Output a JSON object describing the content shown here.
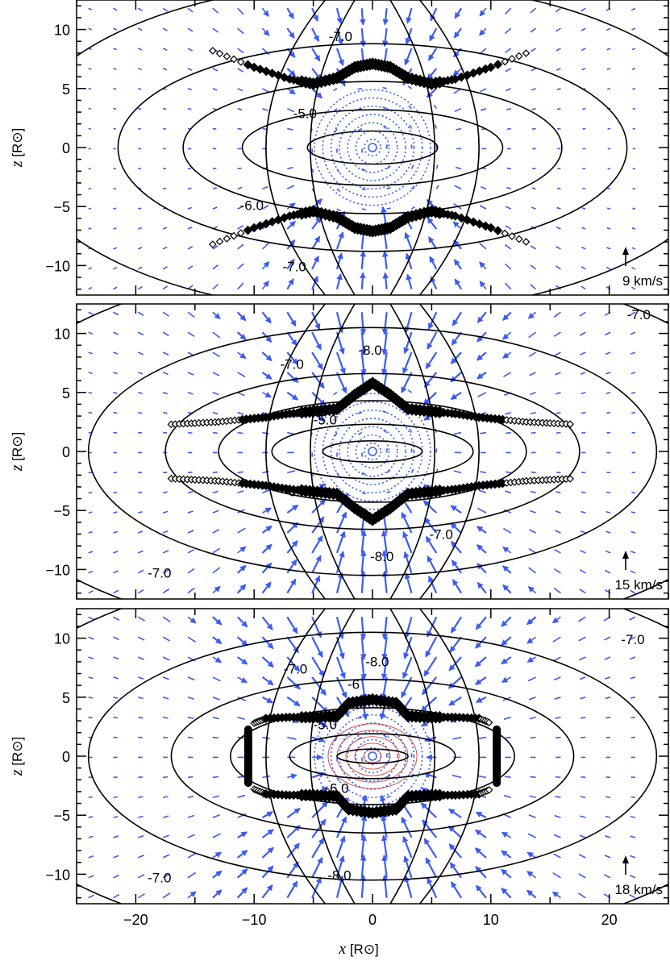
{
  "chart_data": [
    {
      "type": "contour+vector",
      "panel": "top",
      "ylabel": "z [R⊙]",
      "xlim": [
        -25,
        25
      ],
      "ylim": [
        -12.5,
        12.5
      ],
      "xticks": [
        -20,
        -10,
        0,
        10,
        20
      ],
      "yticks": [
        -10,
        -5,
        0,
        5,
        10
      ],
      "contour_labels": [
        "-5.0",
        "-6.0",
        "-7.0",
        "-7.0"
      ],
      "reference_arrow_label": "9 km/s",
      "vector_color": "#3b5bf5",
      "shock_x": [
        -13.5,
        -10,
        -7,
        -5,
        -3,
        -1.5,
        0,
        1.5,
        3,
        5,
        7,
        10,
        13.5
      ],
      "shock_z": [
        8.2,
        6.8,
        5.8,
        5.4,
        5.9,
        6.8,
        7.1,
        6.8,
        5.9,
        5.4,
        5.8,
        6.8,
        8.2
      ]
    },
    {
      "type": "contour+vector",
      "panel": "middle",
      "ylabel": "z [R⊙]",
      "xlim": [
        -25,
        25
      ],
      "ylim": [
        -12.5,
        12.5
      ],
      "xticks": [
        -20,
        -10,
        0,
        10,
        20
      ],
      "yticks": [
        -10,
        -5,
        0,
        5,
        10
      ],
      "contour_labels": [
        "-5.0",
        "-6.",
        "-7.0",
        "-7.0",
        "-7.0",
        "-7.0",
        "-8.0",
        "-8.0"
      ],
      "reference_arrow_label": "15 km/s",
      "vector_color": "#3b5bf5",
      "shock_x": [
        -17,
        -15,
        -13,
        -11,
        -9,
        -7,
        -5,
        -3,
        -1.5,
        0,
        1.5,
        3,
        5,
        7,
        9,
        11,
        13,
        15,
        17
      ],
      "shock_z": [
        2.3,
        2.4,
        2.5,
        2.7,
        2.9,
        3.2,
        3.4,
        3.6,
        4.8,
        5.8,
        4.8,
        3.6,
        3.4,
        3.2,
        2.9,
        2.7,
        2.5,
        2.4,
        2.3
      ]
    },
    {
      "type": "contour+vector",
      "panel": "bottom",
      "ylabel": "z [R⊙]",
      "xlabel": "x [R⊙]",
      "xlim": [
        -25,
        25
      ],
      "ylim": [
        -12.5,
        12.5
      ],
      "xticks": [
        -20,
        -10,
        0,
        10,
        20
      ],
      "yticks": [
        -10,
        -5,
        0,
        5,
        10
      ],
      "contour_labels": [
        "-5.0",
        "-6.0",
        "-7.0",
        "-7.0",
        "-7.0",
        "-8.0",
        "-8.0",
        "-6"
      ],
      "reference_arrow_label": "18 km/s",
      "vector_color": "#3b5bf5",
      "shock_x": [
        -10,
        -9,
        -7,
        -5,
        -3,
        -2,
        0,
        2,
        3,
        5,
        7,
        9,
        10
      ],
      "shock_z": [
        2.8,
        3.2,
        3.3,
        3.3,
        3.4,
        4.5,
        4.8,
        4.5,
        3.4,
        3.3,
        3.3,
        3.2,
        2.8
      ]
    }
  ]
}
